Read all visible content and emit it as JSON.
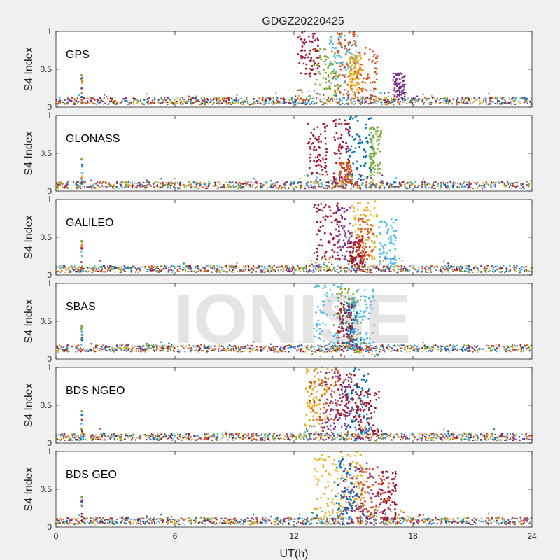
{
  "figure": {
    "title": "GDGZ20220425",
    "watermark": "IONISE",
    "xlabel": "UT(h)",
    "ylabel": "S4 Index"
  },
  "colors": [
    "#0072BD",
    "#D95319",
    "#EDB120",
    "#7E2F8E",
    "#77AC30",
    "#4DBEEE",
    "#A2142F"
  ],
  "chart_data": [
    {
      "type": "scatter",
      "label": "GPS",
      "xlim": [
        0,
        24
      ],
      "ylim": [
        0,
        1
      ],
      "xticks": [
        0,
        6,
        12,
        18,
        24
      ],
      "yticks": [
        0,
        0.5,
        1
      ],
      "baseline": 0.08,
      "spike": {
        "x": 1.3,
        "ymax": 0.42
      },
      "event_window": [
        12,
        17.7
      ],
      "clusters": [
        {
          "x_start": 12.2,
          "x_end": 13.3,
          "y_min": 0.4,
          "y_max": 1.0,
          "color": 6
        },
        {
          "x_start": 13.0,
          "x_end": 14.4,
          "y_min": 0.15,
          "y_max": 0.8,
          "color": 4
        },
        {
          "x_start": 13.8,
          "x_end": 15.2,
          "y_min": 0.3,
          "y_max": 0.95,
          "color": 5
        },
        {
          "x_start": 14.0,
          "x_end": 15.2,
          "y_min": 0.15,
          "y_max": 1.0,
          "color": 1
        },
        {
          "x_start": 15.0,
          "x_end": 16.2,
          "y_min": 0.1,
          "y_max": 0.8,
          "color": 1
        },
        {
          "x_start": 14.8,
          "x_end": 15.4,
          "y_min": 0.2,
          "y_max": 0.7,
          "color": 2
        },
        {
          "x_start": 17.0,
          "x_end": 17.6,
          "y_min": 0.1,
          "y_max": 0.45,
          "color": 3
        }
      ]
    },
    {
      "type": "scatter",
      "label": "GLONASS",
      "xlim": [
        0,
        24
      ],
      "ylim": [
        0,
        1
      ],
      "xticks": [
        0,
        6,
        12,
        18,
        24
      ],
      "yticks": [
        0,
        0.5,
        1
      ],
      "baseline": 0.08,
      "spike": {
        "x": 1.3,
        "ymax": 0.42
      },
      "event_window": [
        12.5,
        16.5
      ],
      "clusters": [
        {
          "x_start": 12.7,
          "x_end": 13.7,
          "y_min": 0.2,
          "y_max": 0.9,
          "color": 6
        },
        {
          "x_start": 14.0,
          "x_end": 14.8,
          "y_min": 0.1,
          "y_max": 0.95,
          "color": 6
        },
        {
          "x_start": 14.7,
          "x_end": 15.9,
          "y_min": 0.1,
          "y_max": 1.0,
          "color": 0
        },
        {
          "x_start": 15.8,
          "x_end": 16.4,
          "y_min": 0.2,
          "y_max": 0.85,
          "color": 4
        },
        {
          "x_start": 14.3,
          "x_end": 14.9,
          "y_min": 0.1,
          "y_max": 0.4,
          "color": 1
        }
      ]
    },
    {
      "type": "scatter",
      "label": "GALILEO",
      "xlim": [
        0,
        24
      ],
      "ylim": [
        0,
        1
      ],
      "xticks": [
        0,
        6,
        12,
        18,
        24
      ],
      "yticks": [
        0,
        0.5,
        1
      ],
      "baseline": 0.08,
      "spike": {
        "x": 1.3,
        "ymax": 0.45
      },
      "event_window": [
        12.8,
        17.5
      ],
      "clusters": [
        {
          "x_start": 13.0,
          "x_end": 14.4,
          "y_min": 0.2,
          "y_max": 0.95,
          "color": 6
        },
        {
          "x_start": 14.1,
          "x_end": 15.0,
          "y_min": 0.2,
          "y_max": 0.9,
          "color": 3
        },
        {
          "x_start": 14.9,
          "x_end": 16.2,
          "y_min": 0.2,
          "y_max": 1.0,
          "color": 2
        },
        {
          "x_start": 15.2,
          "x_end": 16.0,
          "y_min": 0.2,
          "y_max": 0.75,
          "color": 1
        },
        {
          "x_start": 16.3,
          "x_end": 17.2,
          "y_min": 0.1,
          "y_max": 0.75,
          "color": 5
        },
        {
          "x_start": 14.8,
          "x_end": 15.6,
          "y_min": 0.1,
          "y_max": 0.5,
          "color": 6
        }
      ]
    },
    {
      "type": "scatter",
      "label": "SBAS",
      "xlim": [
        0,
        24
      ],
      "ylim": [
        0,
        1
      ],
      "xticks": [
        0,
        6,
        12,
        18,
        24
      ],
      "yticks": [
        0,
        0.5,
        1
      ],
      "baseline": 0.14,
      "spike": {
        "x": 1.3,
        "ymax": 0.44
      },
      "event_window": [
        12.9,
        16.3
      ],
      "clusters": [
        {
          "x_start": 13.0,
          "x_end": 14.4,
          "y_min": 0.1,
          "y_max": 1.0,
          "color": 5
        },
        {
          "x_start": 14.0,
          "x_end": 15.4,
          "y_min": 0.1,
          "y_max": 0.95,
          "color": 4
        },
        {
          "x_start": 14.6,
          "x_end": 15.2,
          "y_min": 0.1,
          "y_max": 0.8,
          "color": 0
        },
        {
          "x_start": 15.0,
          "x_end": 16.1,
          "y_min": 0.1,
          "y_max": 0.95,
          "color": 5
        },
        {
          "x_start": 14.2,
          "x_end": 15.0,
          "y_min": 0.2,
          "y_max": 0.75,
          "color": 6
        }
      ]
    },
    {
      "type": "scatter",
      "label": "BDS NGEO",
      "xlim": [
        0,
        24
      ],
      "ylim": [
        0,
        1
      ],
      "xticks": [
        0,
        6,
        12,
        18,
        24
      ],
      "yticks": [
        0,
        0.5,
        1
      ],
      "baseline": 0.08,
      "spike": {
        "x": 1.3,
        "ymax": 0.42
      },
      "event_window": [
        12.3,
        16.5
      ],
      "clusters": [
        {
          "x_start": 12.5,
          "x_end": 13.7,
          "y_min": 0.2,
          "y_max": 1.0,
          "color": 2
        },
        {
          "x_start": 12.8,
          "x_end": 14.3,
          "y_min": 0.2,
          "y_max": 1.0,
          "color": 1
        },
        {
          "x_start": 13.4,
          "x_end": 14.8,
          "y_min": 0.1,
          "y_max": 0.95,
          "color": 3
        },
        {
          "x_start": 14.6,
          "x_end": 15.8,
          "y_min": 0.1,
          "y_max": 1.0,
          "color": 0
        },
        {
          "x_start": 15.2,
          "x_end": 16.3,
          "y_min": 0.1,
          "y_max": 0.7,
          "color": 6
        },
        {
          "x_start": 14.2,
          "x_end": 15.2,
          "y_min": 0.3,
          "y_max": 0.95,
          "color": 6
        }
      ]
    },
    {
      "type": "scatter",
      "label": "BDS GEO",
      "xlim": [
        0,
        24
      ],
      "ylim": [
        0,
        1
      ],
      "xticks": [
        0,
        6,
        12,
        18,
        24
      ],
      "yticks": [
        0,
        0.5,
        1
      ],
      "baseline": 0.08,
      "spike": {
        "x": 1.3,
        "ymax": 0.4
      },
      "event_window": [
        12.9,
        17.8
      ],
      "clusters": [
        {
          "x_start": 13.0,
          "x_end": 14.6,
          "y_min": 0.1,
          "y_max": 0.95,
          "color": 2
        },
        {
          "x_start": 14.2,
          "x_end": 15.6,
          "y_min": 0.2,
          "y_max": 1.0,
          "color": 2
        },
        {
          "x_start": 14.0,
          "x_end": 15.2,
          "y_min": 0.1,
          "y_max": 0.9,
          "color": 0
        },
        {
          "x_start": 14.5,
          "x_end": 16.5,
          "y_min": 0.1,
          "y_max": 0.85,
          "color": 3
        },
        {
          "x_start": 15.3,
          "x_end": 16.8,
          "y_min": 0.1,
          "y_max": 0.8,
          "color": 1
        },
        {
          "x_start": 16.2,
          "x_end": 17.2,
          "y_min": 0.1,
          "y_max": 0.75,
          "color": 6
        }
      ]
    }
  ]
}
